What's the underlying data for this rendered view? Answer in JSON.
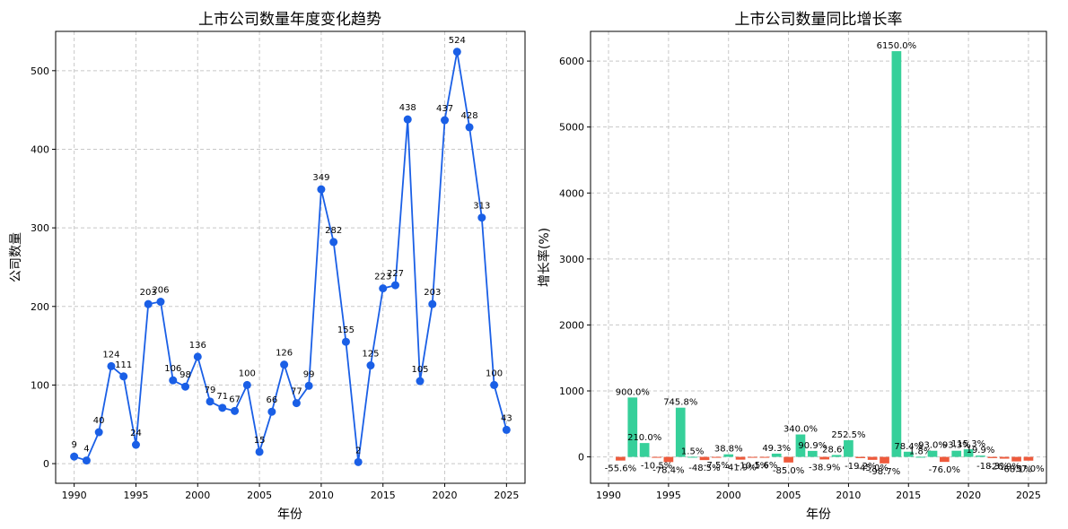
{
  "colors": {
    "line": "#1a5fe6",
    "bar_positive": "#36d09a",
    "bar_negative": "#ee5a3c",
    "grid": "#c8c8c8"
  },
  "chart_data": [
    {
      "type": "line",
      "title": "上市公司数量年度变化趋势",
      "xlabel": "年份",
      "ylabel": "公司数量",
      "xlim": [
        1988.5,
        2026.5
      ],
      "ylim": [
        -25,
        550
      ],
      "xticks": [
        1990,
        1995,
        2000,
        2005,
        2010,
        2015,
        2020,
        2025
      ],
      "yticks": [
        0,
        100,
        200,
        300,
        400,
        500
      ],
      "grid": true,
      "series": [
        {
          "x": [
            1990,
            1991,
            1992,
            1993,
            1994,
            1995,
            1996,
            1997,
            1998,
            1999,
            2000,
            2001,
            2002,
            2003,
            2004,
            2005,
            2006,
            2007,
            2008,
            2009,
            2010,
            2011,
            2012,
            2013,
            2014,
            2015,
            2016,
            2017,
            2018,
            2019,
            2020,
            2021,
            2022,
            2023,
            2024,
            2025
          ],
          "values": [
            9,
            4,
            40,
            124,
            111,
            24,
            203,
            206,
            106,
            98,
            136,
            79,
            71,
            67,
            100,
            15,
            66,
            126,
            77,
            99,
            349,
            282,
            155,
            2,
            125,
            223,
            227,
            438,
            105,
            203,
            437,
            524,
            428,
            313,
            100,
            43
          ]
        }
      ],
      "data_labels": [
        "9",
        "4",
        "40",
        "124",
        "111",
        "24",
        "203",
        "206",
        "106",
        "98",
        "136",
        "79",
        "71",
        "67",
        "100",
        "15",
        "66",
        "126",
        "77",
        "99",
        "349",
        "282",
        "155",
        "2",
        "125",
        "223",
        "227",
        "438",
        "105",
        "203",
        "437",
        "524",
        "428",
        "313",
        "100",
        "43"
      ]
    },
    {
      "type": "bar",
      "title": "上市公司数量同比增长率",
      "xlabel": "年份",
      "ylabel": "增长率(%)",
      "xlim": [
        1988.5,
        2026.5
      ],
      "ylim": [
        -400,
        6450
      ],
      "xticks": [
        1990,
        1995,
        2000,
        2005,
        2010,
        2015,
        2020,
        2025
      ],
      "yticks": [
        0,
        1000,
        2000,
        3000,
        4000,
        5000,
        6000
      ],
      "grid": true,
      "series": [
        {
          "x": [
            1991,
            1992,
            1993,
            1994,
            1995,
            1996,
            1997,
            1998,
            1999,
            2000,
            2001,
            2002,
            2003,
            2004,
            2005,
            2006,
            2007,
            2008,
            2009,
            2010,
            2011,
            2012,
            2013,
            2014,
            2015,
            2016,
            2017,
            2018,
            2019,
            2020,
            2021,
            2022,
            2023,
            2024,
            2025
          ],
          "values": [
            -55.6,
            900.0,
            210.0,
            -10.5,
            -78.4,
            745.8,
            1.5,
            -48.5,
            -7.5,
            38.8,
            -41.9,
            -10.1,
            -5.6,
            49.3,
            -85.0,
            340.0,
            90.9,
            -38.9,
            28.6,
            252.5,
            -19.2,
            -45.0,
            -98.7,
            6150.0,
            78.4,
            1.8,
            93.0,
            -76.0,
            93.3,
            115.3,
            19.9,
            -18.3,
            -26.9,
            -68.1,
            -57.0
          ]
        }
      ],
      "data_labels": [
        "-55.6%",
        "900.0%",
        "210.0%",
        "-10.5%",
        "-78.4%",
        "745.8%",
        "1.5%",
        "-48.5%",
        "-7.5%",
        "38.8%",
        "-41.9%",
        "-10.1%",
        "-5.6%",
        "49.3%",
        "-85.0%",
        "340.0%",
        "90.9%",
        "-38.9%",
        "28.6%",
        "252.5%",
        "-19.2%",
        "-45.0%",
        "-98.7%",
        "6150.0%",
        "78.4%",
        "1.8%",
        "93.0%",
        "-76.0%",
        "93.3%",
        "115.3%",
        "19.9%",
        "-18.3%",
        "-26.9%",
        "-68.1%",
        "-57.0%"
      ]
    }
  ]
}
